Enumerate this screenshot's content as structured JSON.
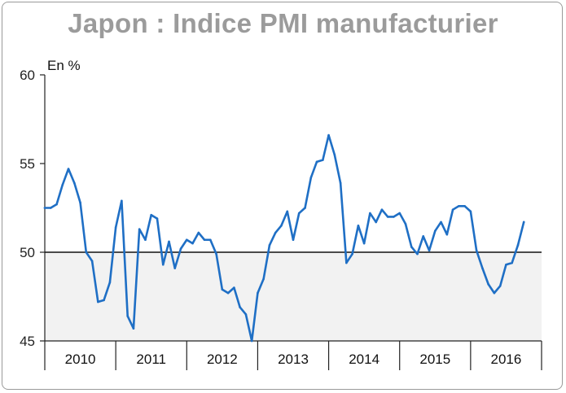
{
  "chart_data": {
    "type": "line",
    "title": "Japon : Indice PMI manufacturier",
    "ylabel": "En %",
    "xlabel": "",
    "ylim": [
      45,
      60
    ],
    "yticks": [
      45,
      50,
      55,
      60
    ],
    "reference_line": 50,
    "categories": [
      "2010",
      "2011",
      "2012",
      "2013",
      "2014",
      "2015",
      "2016"
    ],
    "x_start": 2010.0,
    "x_end": 2017.0,
    "series": [
      {
        "name": "Indice PMI manufacturier",
        "color": "#1f6fc5",
        "x": [
          2010.0,
          2010.083,
          2010.167,
          2010.25,
          2010.333,
          2010.417,
          2010.5,
          2010.583,
          2010.667,
          2010.75,
          2010.833,
          2010.917,
          2011.0,
          2011.083,
          2011.167,
          2011.25,
          2011.333,
          2011.417,
          2011.5,
          2011.583,
          2011.667,
          2011.75,
          2011.833,
          2011.917,
          2012.0,
          2012.083,
          2012.167,
          2012.25,
          2012.333,
          2012.417,
          2012.5,
          2012.583,
          2012.667,
          2012.75,
          2012.833,
          2012.917,
          2013.0,
          2013.083,
          2013.167,
          2013.25,
          2013.333,
          2013.417,
          2013.5,
          2013.583,
          2013.667,
          2013.75,
          2013.833,
          2013.917,
          2014.0,
          2014.083,
          2014.167,
          2014.25,
          2014.333,
          2014.417,
          2014.5,
          2014.583,
          2014.667,
          2014.75,
          2014.833,
          2014.917,
          2015.0,
          2015.083,
          2015.167,
          2015.25,
          2015.333,
          2015.417,
          2015.5,
          2015.583,
          2015.667,
          2015.75,
          2015.833,
          2015.917,
          2016.0,
          2016.083,
          2016.167,
          2016.25,
          2016.333,
          2016.417,
          2016.5,
          2016.583,
          2016.667,
          2016.75
        ],
        "values": [
          52.5,
          52.5,
          52.7,
          53.8,
          54.7,
          53.9,
          52.8,
          50.0,
          49.5,
          47.2,
          47.3,
          48.3,
          51.4,
          52.9,
          46.4,
          45.7,
          51.3,
          50.7,
          52.1,
          51.9,
          49.3,
          50.6,
          49.1,
          50.2,
          50.7,
          50.5,
          51.1,
          50.7,
          50.7,
          49.9,
          47.9,
          47.7,
          48.0,
          46.9,
          46.5,
          45.0,
          47.7,
          48.5,
          50.4,
          51.1,
          51.5,
          52.3,
          50.7,
          52.2,
          52.5,
          54.2,
          55.1,
          55.2,
          56.6,
          55.5,
          53.9,
          49.4,
          49.9,
          51.5,
          50.5,
          52.2,
          51.7,
          52.4,
          52.0,
          52.0,
          52.2,
          51.6,
          50.3,
          49.9,
          50.9,
          50.1,
          51.2,
          51.7,
          51.0,
          52.4,
          52.6,
          52.6,
          52.3,
          50.1,
          49.1,
          48.2,
          47.7,
          48.1,
          49.3,
          49.4,
          50.4,
          51.7
        ]
      }
    ]
  },
  "colors": {
    "line": "#1f6fc5",
    "shade": "#f2f2f2",
    "title": "#9b9b9b",
    "axis": "#222222"
  }
}
